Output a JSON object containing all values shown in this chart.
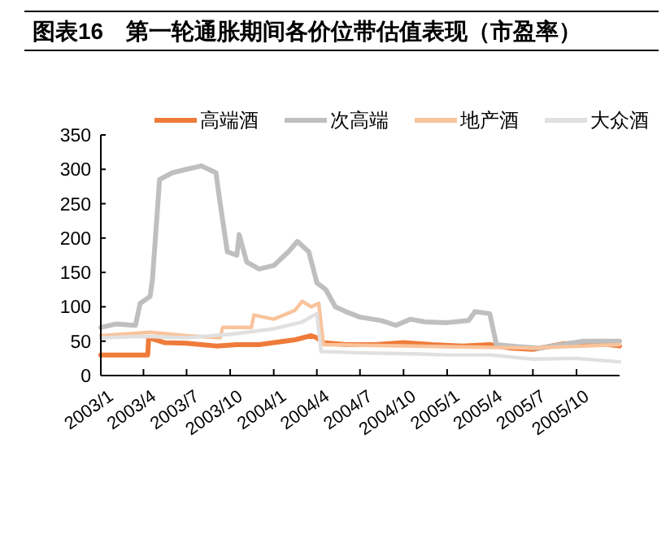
{
  "chart_data": {
    "type": "line",
    "title": "图表16　第一轮通胀期间各价位带估值表现（市盈率）",
    "xlim": [
      "2003-01-01",
      "2005-12-31"
    ],
    "xticks": [
      {
        "value": "2003-01-01",
        "label": "2003/1"
      },
      {
        "value": "2003-04-01",
        "label": "2003/4"
      },
      {
        "value": "2003-07-01",
        "label": "2003/7"
      },
      {
        "value": "2003-10-01",
        "label": "2003/10"
      },
      {
        "value": "2004-01-01",
        "label": "2004/1"
      },
      {
        "value": "2004-04-01",
        "label": "2004/4"
      },
      {
        "value": "2004-07-01",
        "label": "2004/7"
      },
      {
        "value": "2004-10-01",
        "label": "2004/10"
      },
      {
        "value": "2005-01-01",
        "label": "2005/1"
      },
      {
        "value": "2005-04-01",
        "label": "2005/4"
      },
      {
        "value": "2005-07-01",
        "label": "2005/7"
      },
      {
        "value": "2005-10-01",
        "label": "2005/10"
      }
    ],
    "ylim": [
      0,
      350
    ],
    "yticks": [
      0,
      50,
      100,
      150,
      200,
      250,
      300,
      350
    ],
    "grid": false,
    "legend": "top",
    "marker": "none",
    "line_style": "solid",
    "series": [
      {
        "name": "高端酒",
        "color": "#ef7b3a",
        "x": [
          "2003-01-01",
          "2003-04-10",
          "2003-04-12",
          "2003-05-15",
          "2003-07-01",
          "2003-09-01",
          "2003-10-15",
          "2003-12-01",
          "2004-01-01",
          "2004-02-15",
          "2004-03-20",
          "2004-04-01",
          "2004-04-15",
          "2004-06-01",
          "2004-08-01",
          "2004-10-01",
          "2004-12-01",
          "2005-02-01",
          "2005-04-01",
          "2005-05-15",
          "2005-07-01",
          "2005-09-01",
          "2005-11-01",
          "2005-12-31"
        ],
        "values": [
          30,
          30,
          55,
          48,
          47,
          43,
          45,
          45,
          48,
          52,
          58,
          55,
          48,
          45,
          45,
          48,
          45,
          43,
          45,
          40,
          38,
          46,
          48,
          43
        ]
      },
      {
        "name": "次高端",
        "color": "#bfbfbf",
        "x": [
          "2003-01-01",
          "2003-02-01",
          "2003-03-15",
          "2003-03-25",
          "2003-04-15",
          "2003-04-20",
          "2003-05-05",
          "2003-06-01",
          "2003-07-01",
          "2003-08-01",
          "2003-09-01",
          "2003-09-10",
          "2003-09-25",
          "2003-10-15",
          "2003-10-20",
          "2003-11-05",
          "2003-12-01",
          "2004-01-01",
          "2004-02-01",
          "2004-02-20",
          "2004-03-15",
          "2004-04-01",
          "2004-04-20",
          "2004-05-10",
          "2004-06-01",
          "2004-07-01",
          "2004-08-15",
          "2004-09-15",
          "2004-10-15",
          "2004-11-15",
          "2005-01-01",
          "2005-02-15",
          "2005-03-01",
          "2005-04-01",
          "2005-04-15",
          "2005-06-01",
          "2005-07-15",
          "2005-09-01",
          "2005-10-15",
          "2005-12-31"
        ],
        "values": [
          70,
          75,
          73,
          105,
          115,
          140,
          285,
          295,
          300,
          305,
          295,
          250,
          180,
          175,
          205,
          165,
          155,
          160,
          180,
          195,
          180,
          135,
          125,
          100,
          93,
          85,
          80,
          73,
          82,
          78,
          77,
          80,
          93,
          90,
          45,
          42,
          40,
          45,
          50,
          50
        ]
      },
      {
        "name": "地产酒",
        "color": "#f9c39b",
        "x": [
          "2003-01-01",
          "2003-04-15",
          "2003-07-01",
          "2003-09-10",
          "2003-09-15",
          "2003-11-15",
          "2003-11-20",
          "2004-01-01",
          "2004-02-15",
          "2004-03-01",
          "2004-03-20",
          "2004-04-05",
          "2004-04-15",
          "2004-12-31",
          "2005-06-30",
          "2005-12-31"
        ],
        "values": [
          58,
          63,
          58,
          55,
          70,
          70,
          88,
          82,
          95,
          108,
          100,
          105,
          45,
          42,
          40,
          45
        ]
      },
      {
        "name": "大众酒",
        "color": "#e0e0e0",
        "x": [
          "2003-01-01",
          "2003-04-01",
          "2003-07-01",
          "2003-10-01",
          "2004-01-01",
          "2004-03-01",
          "2004-04-01",
          "2004-04-10",
          "2004-07-01",
          "2004-10-01",
          "2005-01-01",
          "2005-04-01",
          "2005-07-01",
          "2005-10-01",
          "2005-12-31"
        ],
        "values": [
          55,
          57,
          55,
          60,
          68,
          78,
          90,
          35,
          33,
          32,
          30,
          30,
          24,
          25,
          20
        ]
      }
    ]
  }
}
